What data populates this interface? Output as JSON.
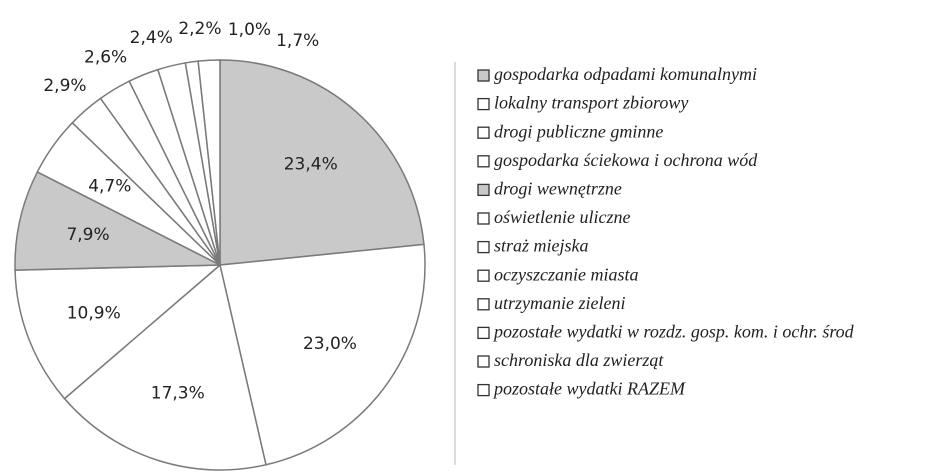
{
  "chart_data": {
    "type": "pie",
    "categories": [
      "gospodarka odpadami komunalnymi",
      "lokalny transport zbiorowy",
      "drogi publiczne gminne",
      "gospodarka ściekowa i ochrona wód",
      "drogi wewnętrzne",
      "oświetlenie uliczne",
      "straż miejska",
      "oczyszczanie miasta",
      "utrzymanie zieleni",
      "pozostałe wydatki w rozdz. gosp. kom. i ochr. środ",
      "schroniska dla zwierząt",
      "pozostałe wydatki RAZEM"
    ],
    "values": [
      23.4,
      23.0,
      17.3,
      10.9,
      7.9,
      4.7,
      2.9,
      2.6,
      2.4,
      2.2,
      1.0,
      1.7
    ],
    "value_labels": [
      "23,4%",
      "23,0%",
      "17,3%",
      "10,9%",
      "7,9%",
      "4,7%",
      "2,9%",
      "2,6%",
      "2,4%",
      "2,2%",
      "1,0%",
      "1,7%"
    ],
    "colors": [
      "#c9c9c9",
      "#ffffff",
      "#ffffff",
      "#ffffff",
      "#c9c9c9",
      "#ffffff",
      "#ffffff",
      "#ffffff",
      "#ffffff",
      "#ffffff",
      "#ffffff",
      "#ffffff"
    ]
  }
}
